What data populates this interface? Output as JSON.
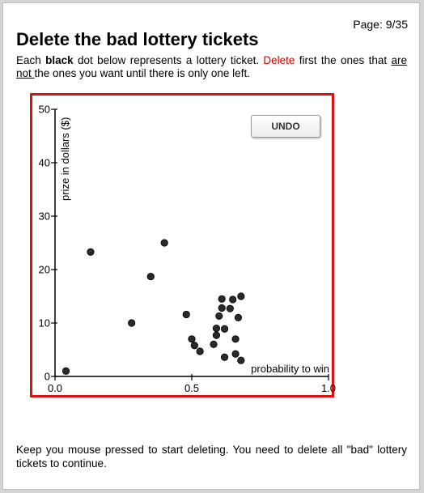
{
  "page_number": "Page: 9/35",
  "title": "Delete the bad lottery tickets",
  "instructions": {
    "part1": "Each ",
    "bold": "black",
    "part2": " dot below represents a lottery ticket. ",
    "red": "Delete",
    "part3": " first the ones that ",
    "underline": "are not ",
    "part4": "the ones you want until there is only one left."
  },
  "undo_label": "UNDO",
  "footer_text": "Keep you mouse pressed to start deleting. You need to delete all \"bad\" lottery tickets to continue.",
  "colors": {
    "frame": "#dd1111",
    "dot": "#2a2a2a",
    "delete_text": "#d40000"
  },
  "chart_data": {
    "type": "scatter",
    "xlabel": "probability to win",
    "ylabel": "prize in dollars ($)",
    "xlim": [
      0,
      1.0
    ],
    "ylim": [
      0,
      50
    ],
    "x_ticks": [
      "0.0",
      "0.5",
      "1.0"
    ],
    "y_ticks": [
      "0",
      "10",
      "20",
      "30",
      "40",
      "50"
    ],
    "points": [
      {
        "x": 0.04,
        "y": 1
      },
      {
        "x": 0.13,
        "y": 23.3
      },
      {
        "x": 0.28,
        "y": 10
      },
      {
        "x": 0.35,
        "y": 18.7
      },
      {
        "x": 0.4,
        "y": 25
      },
      {
        "x": 0.48,
        "y": 11.6
      },
      {
        "x": 0.5,
        "y": 7
      },
      {
        "x": 0.51,
        "y": 5.8
      },
      {
        "x": 0.53,
        "y": 4.7
      },
      {
        "x": 0.58,
        "y": 6
      },
      {
        "x": 0.59,
        "y": 9
      },
      {
        "x": 0.59,
        "y": 7.7
      },
      {
        "x": 0.6,
        "y": 11.3
      },
      {
        "x": 0.61,
        "y": 12.8
      },
      {
        "x": 0.61,
        "y": 14.5
      },
      {
        "x": 0.62,
        "y": 3.6
      },
      {
        "x": 0.62,
        "y": 8.9
      },
      {
        "x": 0.64,
        "y": 12.7
      },
      {
        "x": 0.65,
        "y": 14.4
      },
      {
        "x": 0.66,
        "y": 7
      },
      {
        "x": 0.66,
        "y": 4.2
      },
      {
        "x": 0.67,
        "y": 11
      },
      {
        "x": 0.68,
        "y": 15
      },
      {
        "x": 0.68,
        "y": 3
      }
    ]
  }
}
